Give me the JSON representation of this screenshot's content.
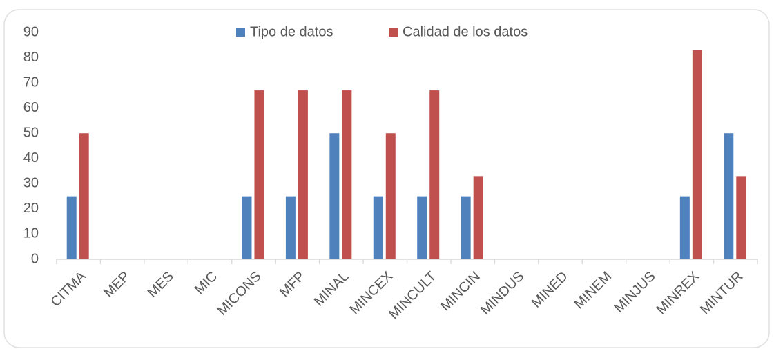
{
  "chart_data": {
    "type": "bar",
    "categories": [
      "CITMA",
      "MEP",
      "MES",
      "MIC",
      "MICONS",
      "MFP",
      "MINAL",
      "MINCEX",
      "MINCULT",
      "MINCIN",
      "MINDUS",
      "MINED",
      "MINEM",
      "MINJUS",
      "MINREX",
      "MINTUR"
    ],
    "series": [
      {
        "name": "Tipo de datos",
        "color": "#4f81bd",
        "values": [
          25,
          0,
          0,
          0,
          25,
          25,
          50,
          25,
          25,
          25,
          0,
          0,
          0,
          0,
          25,
          50
        ]
      },
      {
        "name": "Calidad de los datos",
        "color": "#c0504d",
        "values": [
          50,
          0,
          0,
          0,
          67,
          67,
          67,
          50,
          67,
          33,
          0,
          0,
          0,
          0,
          83,
          33
        ]
      }
    ],
    "ylim": [
      0,
      90
    ],
    "yticks": [
      0,
      10,
      20,
      30,
      40,
      50,
      60,
      70,
      80,
      90
    ],
    "grid": false,
    "legend": "top"
  }
}
